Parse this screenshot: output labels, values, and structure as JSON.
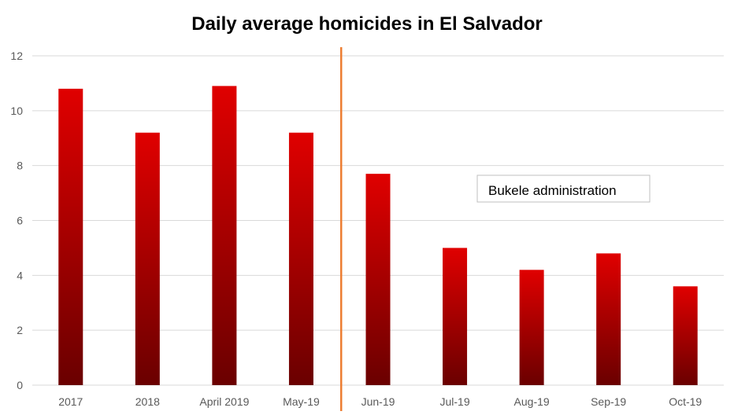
{
  "chart_data": {
    "type": "bar",
    "title": "Daily average homicides in El Salvador",
    "xlabel": "",
    "ylabel": "",
    "categories": [
      "2017",
      "2018",
      "April 2019",
      "May-19",
      "Jun-19",
      "Jul-19",
      "Aug-19",
      "Sep-19",
      "Oct-19"
    ],
    "values": [
      10.8,
      9.2,
      10.9,
      9.2,
      7.7,
      5.0,
      4.2,
      4.8,
      3.6
    ],
    "ylim": [
      0,
      12
    ],
    "yticks": [
      0,
      2,
      4,
      6,
      8,
      10,
      12
    ],
    "grid": true,
    "legend": "none",
    "annotation": {
      "text": "Bukele administration",
      "divider_after_category": "May-19"
    },
    "colors": {
      "bar_top": "#e00000",
      "bar_bottom": "#6a0000",
      "divider": "#ed7d31",
      "grid": "#d9d9d9",
      "tick_text": "#595959"
    }
  }
}
